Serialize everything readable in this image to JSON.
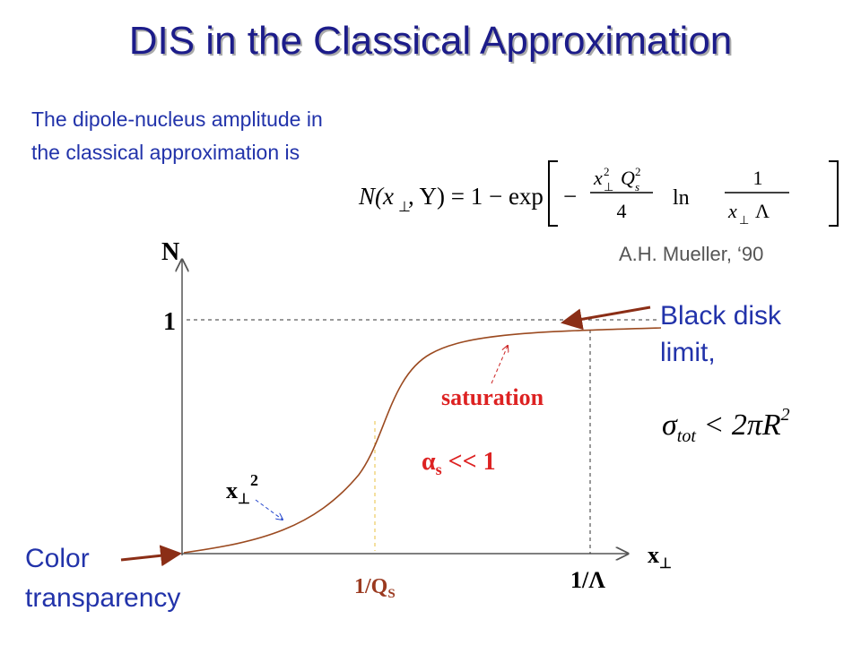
{
  "title": "DIS in the Classical Approximation",
  "intro": {
    "lines": [
      "The dipole-nucleus amplitude in",
      "the classical approximation is"
    ]
  },
  "formula": {
    "lhs": "N(x",
    "lhs_sub": "⊥",
    "lhs_rest": ", Y) = 1 − exp",
    "minus": "−",
    "num_x": "x",
    "num_x_sub": "⊥",
    "num_x_sup": "2",
    "num_q": "Q",
    "num_q_sub": "s",
    "num_q_sup": "2",
    "den": "4",
    "ln": "ln",
    "frac_num": "1",
    "frac_den_x": "x",
    "frac_den_sub": "⊥",
    "frac_den_lambda": "Λ"
  },
  "citation": "A.H. Mueller, ‘90",
  "graph": {
    "y_axis_label": "N",
    "y_tick": "1",
    "x_axis_label": {
      "main": "x",
      "sub": "⊥"
    },
    "x_mark_qs": {
      "main": "1/Q",
      "sub": "S"
    },
    "x_mark_lambda": "1/Λ",
    "saturation": "saturation",
    "alpha": {
      "main": "α",
      "sub": "s",
      "rest": " << 1"
    },
    "x_perp_sq": {
      "main": "x",
      "sub": "⊥",
      "sup": "2"
    }
  },
  "black_disk": {
    "lines": [
      "Black disk",
      "limit,"
    ]
  },
  "sigma": {
    "main": "σ",
    "sub": "tot",
    "rest": " < 2πR",
    "sup": "2"
  },
  "color_transparency": {
    "lines": [
      "Color",
      "transparency"
    ]
  }
}
